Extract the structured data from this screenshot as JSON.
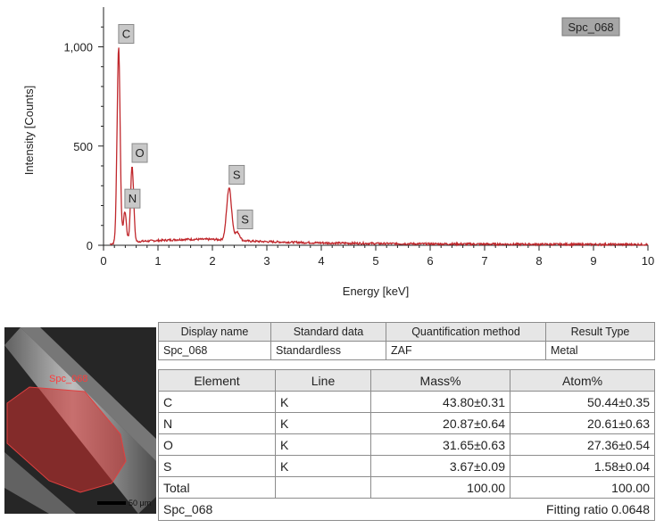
{
  "chart_data": {
    "type": "line",
    "xlabel": "Energy [keV]",
    "ylabel": "Intensity [Counts]",
    "xlim": [
      0,
      10
    ],
    "ylim": [
      0,
      1200
    ],
    "xticks": [
      "0",
      "1",
      "2",
      "3",
      "4",
      "5",
      "6",
      "7",
      "8",
      "9",
      "10"
    ],
    "yticks": [
      "0",
      "500",
      "1,000"
    ],
    "legend": "Spc_068",
    "legend_position": "top-right",
    "grid": false,
    "series_color": "#c0282d",
    "peaks": [
      {
        "label": "C",
        "x": 0.277,
        "y": 1000
      },
      {
        "label": "N",
        "x": 0.392,
        "y": 170
      },
      {
        "label": "O",
        "x": 0.525,
        "y": 400
      },
      {
        "label": "S",
        "x": 2.307,
        "y": 290
      },
      {
        "label": "S",
        "x": 2.46,
        "y": 65
      }
    ],
    "background_counts": [
      {
        "x": 0.2,
        "y": 10
      },
      {
        "x": 0.7,
        "y": 20
      },
      {
        "x": 1.0,
        "y": 24
      },
      {
        "x": 1.5,
        "y": 30
      },
      {
        "x": 2.0,
        "y": 30
      },
      {
        "x": 2.6,
        "y": 22
      },
      {
        "x": 3.0,
        "y": 18
      },
      {
        "x": 4.0,
        "y": 12
      },
      {
        "x": 5.0,
        "y": 9
      },
      {
        "x": 6.0,
        "y": 7
      },
      {
        "x": 8.0,
        "y": 5
      },
      {
        "x": 10.0,
        "y": 4
      }
    ]
  },
  "sem_image": {
    "roi_label": "Spc_068",
    "scale_bar": "50 μm",
    "roi_color": "#d0302e"
  },
  "meta_table": {
    "headers": [
      "Display name",
      "Standard data",
      "Quantification method",
      "Result Type"
    ],
    "row": [
      "Spc_068",
      "Standardless",
      "ZAF",
      "Metal"
    ]
  },
  "quant_table": {
    "headers": [
      "Element",
      "Line",
      "Mass%",
      "Atom%"
    ],
    "rows": [
      [
        "C",
        "K",
        "43.80±0.31",
        "50.44±0.35"
      ],
      [
        "N",
        "K",
        "20.87±0.64",
        "20.61±0.63"
      ],
      [
        "O",
        "K",
        "31.65±0.63",
        "27.36±0.54"
      ],
      [
        "S",
        "K",
        "3.67±0.09",
        "1.58±0.04"
      ]
    ],
    "total": [
      "Total",
      "",
      "100.00",
      "100.00"
    ],
    "footer_left": "Spc_068",
    "footer_right": "Fitting ratio 0.0648"
  }
}
